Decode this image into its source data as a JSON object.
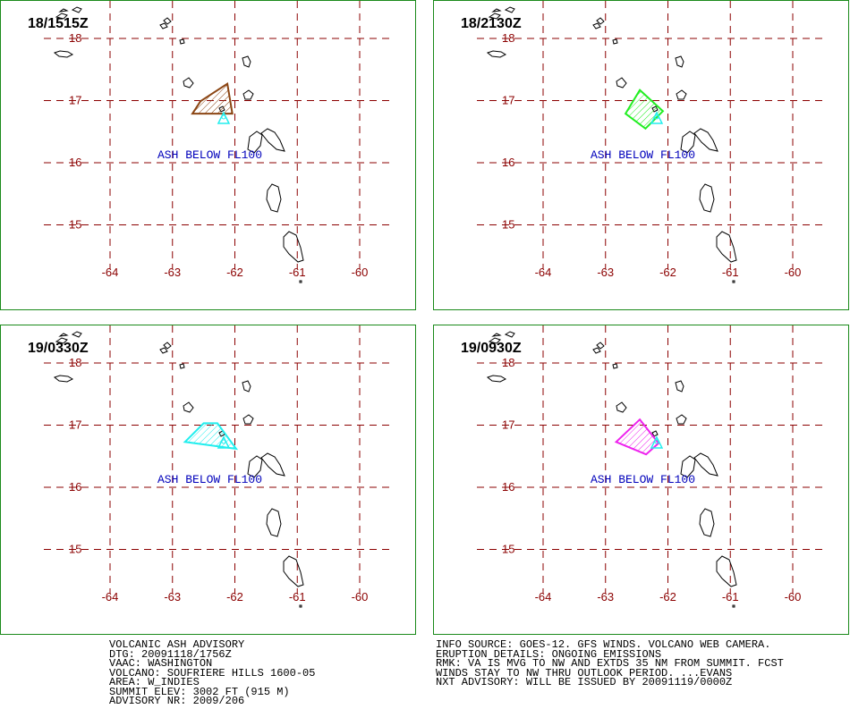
{
  "panels": [
    {
      "time": "18/1515Z",
      "cloud_color": "#8b4513",
      "cloud": [
        [
          -62.68,
          16.79
        ],
        [
          -62.55,
          16.99
        ],
        [
          -62.12,
          17.27
        ],
        [
          -62.04,
          16.79
        ]
      ]
    },
    {
      "time": "18/2130Z",
      "cloud_color": "#22ee22",
      "cloud": [
        [
          -62.68,
          16.79
        ],
        [
          -62.45,
          17.17
        ],
        [
          -62.08,
          16.83
        ],
        [
          -62.36,
          16.55
        ]
      ]
    },
    {
      "time": "19/0330Z",
      "cloud_color": "#22eeee",
      "cloud": [
        [
          -62.8,
          16.73
        ],
        [
          -62.5,
          17.03
        ],
        [
          -62.28,
          17.03
        ],
        [
          -61.98,
          16.62
        ]
      ]
    },
    {
      "time": "19/0930Z",
      "cloud_color": "#ee22ee",
      "cloud": [
        [
          -62.83,
          16.73
        ],
        [
          -62.45,
          17.09
        ],
        [
          -62.15,
          16.71
        ],
        [
          -62.35,
          16.53
        ]
      ]
    }
  ],
  "ash_label": "ASH BELOW FL100",
  "lon_labels": [
    "-64",
    "-63",
    "-62",
    "-61",
    "-60"
  ],
  "lat_labels": [
    "18",
    "17",
    "16",
    "15"
  ],
  "grid_color": "#8b0000",
  "label_color": "#8b0000",
  "ash_label_color": "#0000bb",
  "volcano_marker_color": "#22eeee",
  "left_info": [
    "VOLCANIC ASH ADVISORY",
    "DTG: 20091118/1756Z",
    "VAAC: WASHINGTON",
    "VOLCANO: SOUFRIERE HILLS 1600-05",
    "AREA: W_INDIES",
    "SUMMIT ELEV: 3002 FT (915 M)",
    "ADVISORY NR: 2009/206"
  ],
  "right_info": [
    "INFO SOURCE: GOES-12. GFS WINDS. VOLCANO WEB CAMERA.",
    "ERUPTION DETAILS: ONGOING EMISSIONS",
    "RMK: VA IS MVG TO NW AND EXTDS 35 NM FROM SUMMIT. FCST",
    "WINDS STAY TO NW THRU OUTLOOK PERIOD. ...EVANS",
    "NXT ADVISORY: WILL BE ISSUED BY 20091119/0000Z"
  ]
}
